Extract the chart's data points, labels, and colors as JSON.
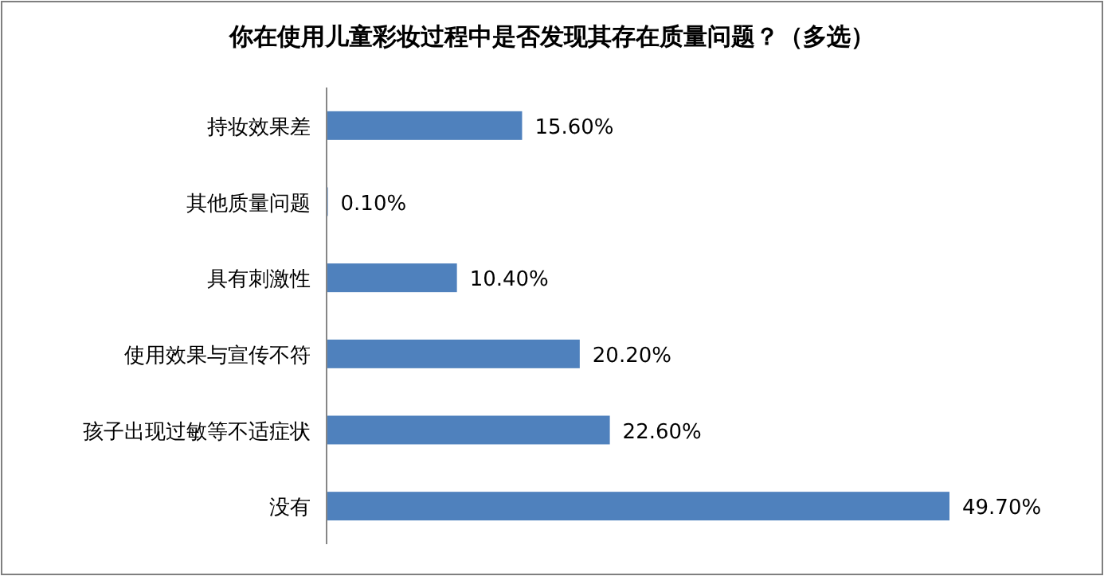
{
  "chart_data": {
    "type": "bar",
    "orientation": "horizontal",
    "title": "你在使用儿童彩妆过程中是否发现其存在质量问题？（多选）",
    "categories": [
      "持妆效果差",
      "其他质量问题",
      "具有刺激性",
      "使用效果与宣传不符",
      "孩子出现过敏等不适症状",
      "没有"
    ],
    "values": [
      15.6,
      0.1,
      10.4,
      20.2,
      22.6,
      49.7
    ],
    "value_labels": [
      "15.60%",
      "0.10%",
      "10.40%",
      "20.20%",
      "22.60%",
      "49.70%"
    ],
    "color": "#4f81bd"
  }
}
